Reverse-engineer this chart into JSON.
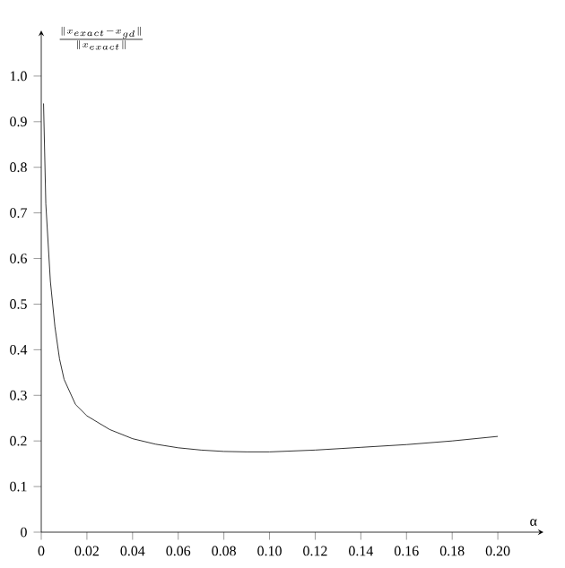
{
  "chart_data": {
    "type": "line",
    "xlabel": "α",
    "ylabel": "\\frac{\\|x_{exact}-x_{gd}\\|}{\\|x_{exact}\\|}",
    "x": [
      0.001,
      0.002,
      0.004,
      0.006,
      0.008,
      0.01,
      0.015,
      0.02,
      0.03,
      0.04,
      0.05,
      0.06,
      0.07,
      0.08,
      0.09,
      0.1,
      0.12,
      0.14,
      0.16,
      0.18,
      0.2
    ],
    "values": [
      0.94,
      0.72,
      0.55,
      0.45,
      0.38,
      0.335,
      0.28,
      0.255,
      0.225,
      0.205,
      0.193,
      0.185,
      0.18,
      0.177,
      0.176,
      0.176,
      0.18,
      0.186,
      0.192,
      0.2,
      0.21
    ],
    "color": "#000000",
    "xlim": [
      0,
      0.22
    ],
    "ylim": [
      0,
      1.1
    ],
    "xticks": [
      0,
      0.02,
      0.04,
      0.06,
      0.08,
      {
        "value": 0.1,
        "label": "0.10"
      },
      0.12,
      0.14,
      0.16,
      0.18,
      {
        "value": 0.2,
        "label": "0.20"
      }
    ],
    "yticks": [
      0,
      0.1,
      0.2,
      0.3,
      0.4,
      0.5,
      0.6,
      0.7,
      0.8,
      0.9,
      {
        "value": 1.0,
        "label": "1.0"
      }
    ]
  }
}
